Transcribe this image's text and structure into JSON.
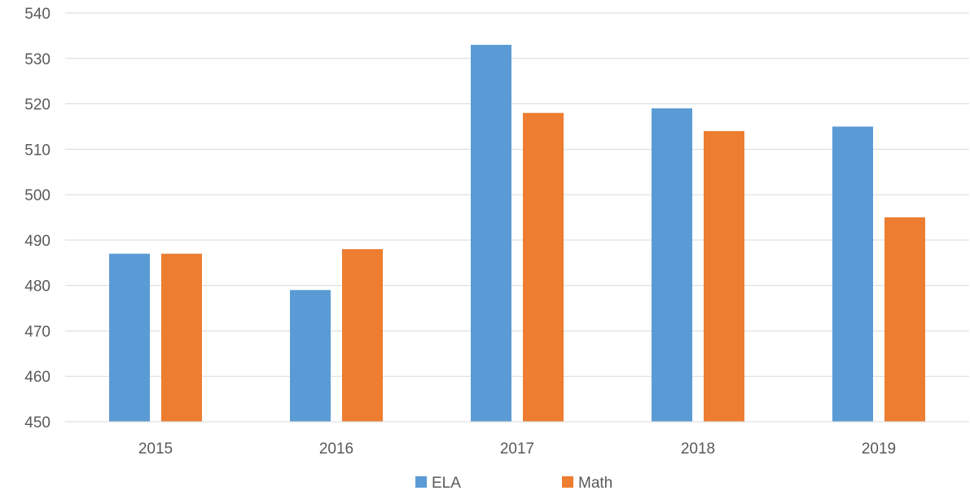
{
  "chart_data": {
    "type": "bar",
    "categories": [
      "2015",
      "2016",
      "2017",
      "2018",
      "2019"
    ],
    "series": [
      {
        "name": "ELA",
        "values": [
          487,
          479,
          533,
          519,
          515
        ],
        "color": "#5b9bd5"
      },
      {
        "name": "Math",
        "values": [
          487,
          488,
          518,
          514,
          495
        ],
        "color": "#ed7d31"
      }
    ],
    "title": "",
    "xlabel": "",
    "ylabel": "",
    "ylim": [
      450,
      540
    ],
    "yticks": [
      450,
      460,
      470,
      480,
      490,
      500,
      510,
      520,
      530,
      540
    ],
    "grid": true,
    "legend_position": "bottom"
  }
}
